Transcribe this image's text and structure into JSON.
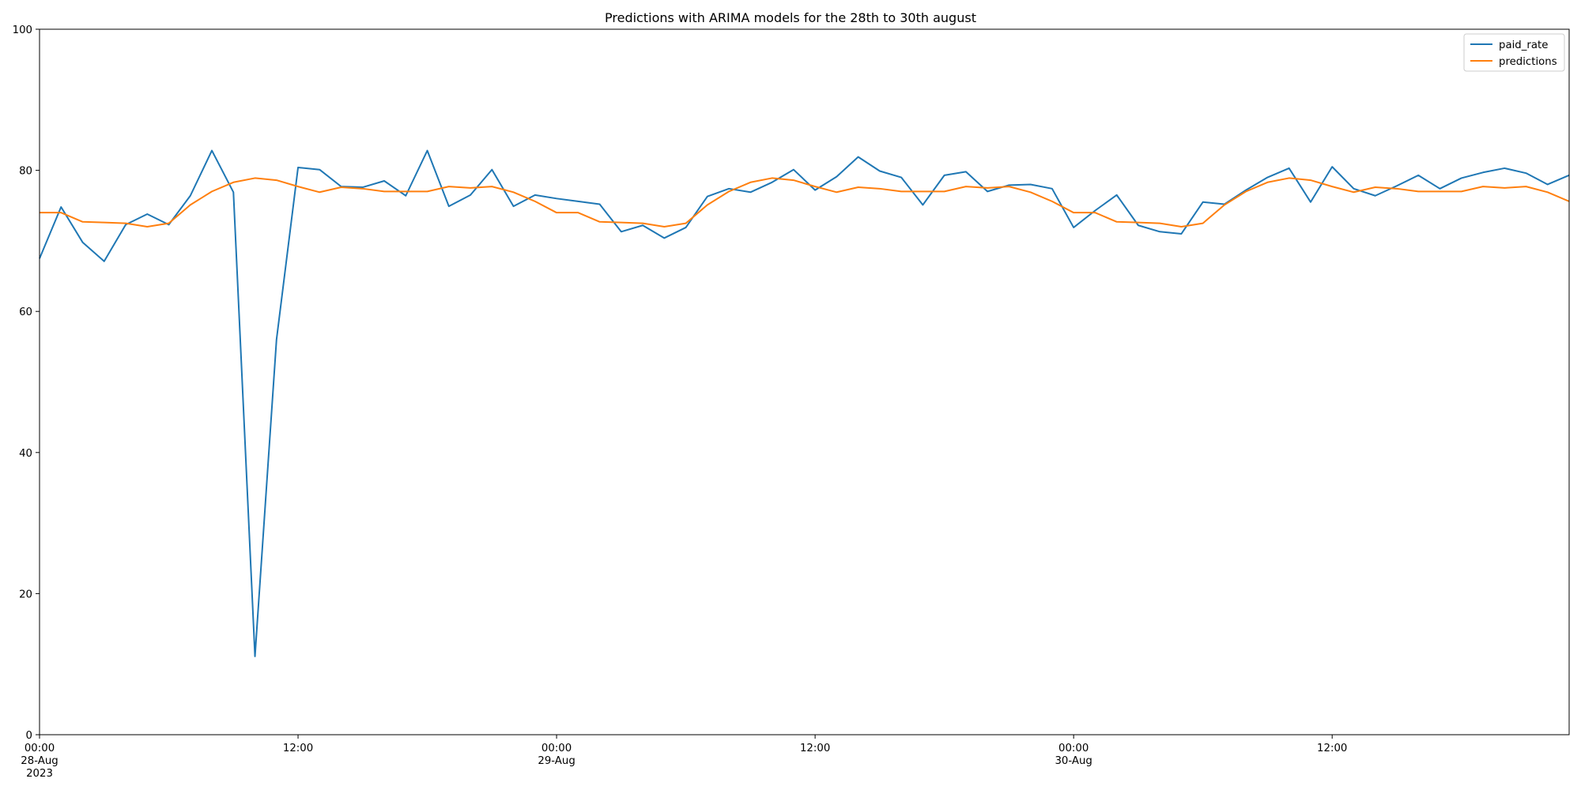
{
  "chart_data": {
    "type": "line",
    "title": "Predictions with ARIMA models for the 28th to 30th august",
    "xlabel": "",
    "ylabel": "",
    "x_start": "2023-08-28 00:00",
    "x_end": "2023-08-30 23:00",
    "x_step": "1h",
    "ylim": [
      0,
      100
    ],
    "yticks": [
      0,
      20,
      40,
      60,
      80,
      100
    ],
    "xticks": [
      {
        "time": "2023-08-28 00:00",
        "label": [
          "00:00",
          "28-Aug",
          "2023"
        ]
      },
      {
        "time": "2023-08-28 12:00",
        "label": [
          "12:00"
        ]
      },
      {
        "time": "2023-08-29 00:00",
        "label": [
          "00:00",
          "29-Aug"
        ]
      },
      {
        "time": "2023-08-29 12:00",
        "label": [
          "12:00"
        ]
      },
      {
        "time": "2023-08-30 00:00",
        "label": [
          "00:00",
          "30-Aug"
        ]
      },
      {
        "time": "2023-08-30 12:00",
        "label": [
          "12:00"
        ]
      }
    ],
    "grid": false,
    "legend_position": "top-right",
    "series": [
      {
        "name": "paid_rate",
        "color": "#1f77b4",
        "values": [
          67.5,
          74.8,
          69.8,
          67.1,
          72.3,
          73.8,
          72.3,
          76.4,
          82.8,
          76.9,
          11.1,
          56.0,
          80.4,
          80.1,
          77.7,
          77.6,
          78.5,
          76.4,
          82.8,
          74.9,
          76.5,
          80.1,
          74.9,
          76.5,
          76.0,
          75.6,
          75.2,
          71.3,
          72.2,
          70.4,
          71.9,
          76.3,
          77.4,
          76.9,
          78.3,
          80.1,
          77.2,
          79.1,
          81.9,
          79.9,
          79.0,
          75.1,
          79.3,
          79.8,
          77.0,
          77.9,
          78.0,
          77.4,
          71.9,
          74.3,
          76.5,
          72.2,
          71.3,
          71.0,
          75.5,
          75.2,
          77.2,
          79.0,
          80.3,
          75.5,
          80.5,
          77.4,
          76.4,
          77.8,
          79.3,
          77.4,
          78.9,
          79.7,
          80.3,
          79.6,
          78.0,
          79.3
        ]
      },
      {
        "name": "predictions",
        "color": "#ff7f0e",
        "values": [
          74.0,
          74.0,
          72.7,
          72.6,
          72.5,
          72.0,
          72.5,
          75.1,
          77.0,
          78.3,
          78.9,
          78.6,
          77.7,
          76.9,
          77.6,
          77.4,
          77.0,
          77.0,
          77.0,
          77.7,
          77.5,
          77.7,
          76.9,
          75.6,
          74.0,
          74.0,
          72.7,
          72.6,
          72.5,
          72.0,
          72.5,
          75.1,
          77.0,
          78.3,
          78.9,
          78.6,
          77.7,
          76.9,
          77.6,
          77.4,
          77.0,
          77.0,
          77.0,
          77.7,
          77.5,
          77.7,
          76.9,
          75.6,
          74.0,
          74.0,
          72.7,
          72.6,
          72.5,
          72.0,
          72.5,
          75.1,
          77.0,
          78.3,
          78.9,
          78.6,
          77.7,
          76.9,
          77.6,
          77.4,
          77.0,
          77.0,
          77.0,
          77.7,
          77.5,
          77.7,
          76.9,
          75.6
        ]
      }
    ]
  }
}
